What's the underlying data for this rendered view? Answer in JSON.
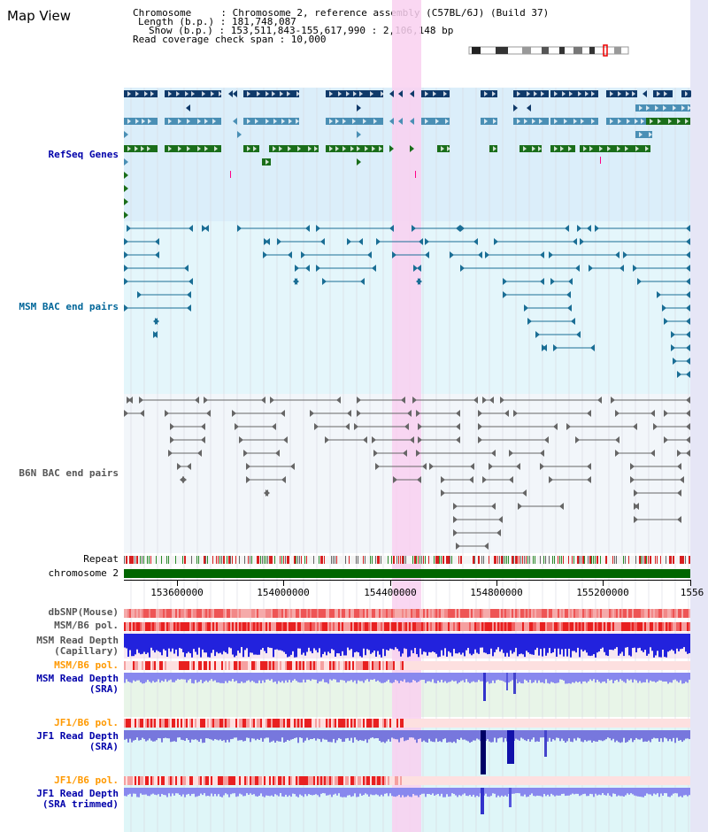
{
  "title": "Map View",
  "info": {
    "line1": "Chromosome     : Chromosome 2, reference assembly (C57BL/6J) (Build 37)",
    "line2": "Length (b.p.) : 181,748,087",
    "line3": "Show (b.p.) : 153,511,843-155,617,990 : 2,106,148 bp",
    "line4": "Read coverage check span : 10,000"
  },
  "tracks": {
    "refseq": {
      "label": "RefSeq Genes",
      "color": "#0000aa"
    },
    "msm_bac": {
      "label": "MSM BAC end pairs",
      "color": "#006699"
    },
    "b6n_bac": {
      "label": "B6N BAC end pairs",
      "color": "#555555"
    },
    "repeat": {
      "label": "Repeat"
    },
    "chromosome": {
      "label": "chromosome 2",
      "color": "#006600"
    },
    "dbsnp": {
      "label": "dbSNP(Mouse)"
    },
    "msm_b6_pol": {
      "label": "MSM/B6 pol."
    },
    "msm_depth_cap": {
      "label1": "MSM Read Depth",
      "label2": "(Capillary)"
    },
    "msm_b6_pol2": {
      "label": "MSM/B6 pol.",
      "color": "#ff9900"
    },
    "msm_depth_sra": {
      "label1": "MSM Read Depth",
      "label2": "(SRA)",
      "color": "#0000aa"
    },
    "jf1_b6_pol": {
      "label": "JF1/B6 pol.",
      "color": "#ff9900"
    },
    "jf1_depth_sra": {
      "label1": "JF1 Read Depth",
      "label2": "(SRA)",
      "color": "#0000aa"
    },
    "jf1_b6_pol2": {
      "label": "JF1/B6 pol.",
      "color": "#ff9900"
    },
    "jf1_depth_trim": {
      "label1": "JF1 Read Depth",
      "label2": "(SRA trimmed)",
      "color": "#0000aa"
    }
  },
  "axis": {
    "ticks": [
      "153600000",
      "154000000",
      "154400000",
      "154800000",
      "155200000",
      "1556"
    ],
    "range_start": 153511843,
    "range_end": 155617990
  },
  "highlight": {
    "start": 154610000,
    "end": 154720000,
    "color": "#f9d0f0"
  },
  "colors": {
    "refseq_dark": "#103a6a",
    "refseq_mid": "#4a8fb5",
    "refseq_green": "#1a6e1a",
    "msm_line": "#1a6e95",
    "b6n_line": "#666666"
  }
}
